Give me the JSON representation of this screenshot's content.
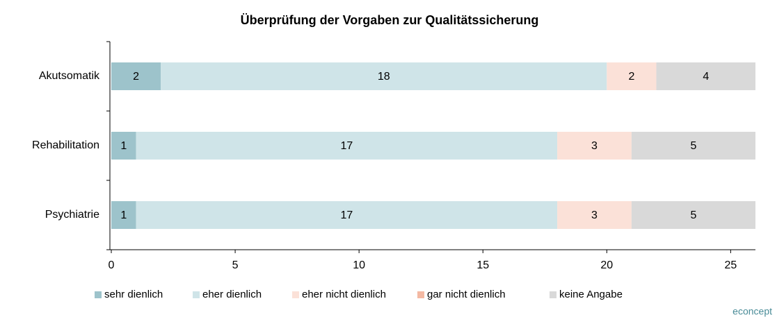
{
  "chart_data": {
    "type": "stacked_bar_horizontal",
    "title": "Überprüfung der Vorgaben zur Qualitätssicherung",
    "categories": [
      "Akutsomatik",
      "Rehabilitation",
      "Psychiatrie"
    ],
    "series": [
      {
        "name": "sehr dienlich",
        "color": "#9dc3cb",
        "values": [
          2,
          1,
          1
        ]
      },
      {
        "name": "eher dienlich",
        "color": "#cfe4e8",
        "values": [
          18,
          17,
          17
        ]
      },
      {
        "name": "eher nicht dienlich",
        "color": "#fbe1d8",
        "values": [
          2,
          3,
          3
        ]
      },
      {
        "name": "gar nicht dienlich",
        "color": "#f4b9a3",
        "values": [
          0,
          0,
          0
        ]
      },
      {
        "name": "keine Angabe",
        "color": "#d9d9d9",
        "values": [
          4,
          5,
          5
        ]
      }
    ],
    "xlim": [
      0,
      26
    ],
    "xticks": [
      0,
      5,
      10,
      15,
      20,
      25
    ],
    "legend": "bottom",
    "source": "econcept"
  }
}
